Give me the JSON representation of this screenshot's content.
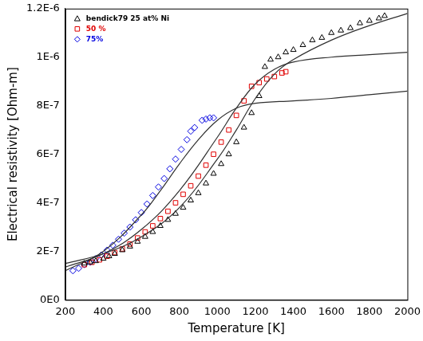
{
  "chart_data": {
    "type": "scatter",
    "x_label": "Temperature [K]",
    "y_label": "Electrical resistivity [Ohm-m]",
    "xlim": [
      200,
      2000
    ],
    "xticks": [
      200,
      400,
      600,
      800,
      1000,
      1200,
      1400,
      1600,
      1800,
      2000
    ],
    "ylim": [
      0,
      1.2e-06
    ],
    "yticks": [
      {
        "value": 0,
        "label": "0E0"
      },
      {
        "value": 2e-07,
        "label": "2E-7"
      },
      {
        "value": 4e-07,
        "label": "4E-7"
      },
      {
        "value": 6e-07,
        "label": "6E-7"
      },
      {
        "value": 8e-07,
        "label": "8E-7"
      },
      {
        "value": 1e-06,
        "label": "1E-6"
      },
      {
        "value": 1.2e-06,
        "label": "1.2E-6"
      }
    ],
    "grid": false,
    "legend": "upper left",
    "series": [
      {
        "name": "bendick79 25 at% Ni",
        "color": "#000000",
        "type": "scatter",
        "marker": "triangle",
        "x": [
          300,
          330,
          360,
          400,
          430,
          460,
          500,
          540,
          580,
          620,
          660,
          700,
          740,
          780,
          820,
          860,
          900,
          940,
          980,
          1020,
          1060,
          1100,
          1140,
          1180,
          1220,
          1250,
          1280,
          1320,
          1360,
          1400,
          1450,
          1500,
          1550,
          1600,
          1650,
          1700,
          1750,
          1800,
          1850,
          1880
        ],
        "values": [
          1.5e-07,
          1.55e-07,
          1.6e-07,
          1.7e-07,
          1.8e-07,
          1.9e-07,
          2.05e-07,
          2.2e-07,
          2.4e-07,
          2.6e-07,
          2.8e-07,
          3.05e-07,
          3.3e-07,
          3.55e-07,
          3.8e-07,
          4.1e-07,
          4.4e-07,
          4.8e-07,
          5.2e-07,
          5.6e-07,
          6e-07,
          6.5e-07,
          7.1e-07,
          7.7e-07,
          8.4e-07,
          9.6e-07,
          9.9e-07,
          1e-06,
          1.02e-06,
          1.03e-06,
          1.05e-06,
          1.07e-06,
          1.08e-06,
          1.1e-06,
          1.11e-06,
          1.12e-06,
          1.14e-06,
          1.15e-06,
          1.16e-06,
          1.17e-06
        ]
      },
      {
        "name": "50 %",
        "color": "#e00000",
        "type": "scatter",
        "marker": "square",
        "x": [
          300,
          340,
          380,
          420,
          460,
          500,
          540,
          580,
          620,
          660,
          700,
          740,
          780,
          820,
          860,
          900,
          940,
          980,
          1020,
          1060,
          1100,
          1140,
          1180,
          1220,
          1260,
          1300,
          1340,
          1360
        ],
        "values": [
          1.45e-07,
          1.55e-07,
          1.65e-07,
          1.8e-07,
          1.95e-07,
          2.1e-07,
          2.3e-07,
          2.55e-07,
          2.8e-07,
          3.05e-07,
          3.35e-07,
          3.65e-07,
          4e-07,
          4.35e-07,
          4.7e-07,
          5.1e-07,
          5.55e-07,
          6e-07,
          6.5e-07,
          7e-07,
          7.6e-07,
          8.2e-07,
          8.8e-07,
          8.95e-07,
          9.1e-07,
          9.2e-07,
          9.35e-07,
          9.4e-07
        ]
      },
      {
        "name": "75%",
        "color": "#0000e0",
        "type": "scatter",
        "marker": "diamond",
        "x": [
          240,
          270,
          300,
          330,
          360,
          390,
          420,
          450,
          480,
          510,
          540,
          570,
          600,
          630,
          660,
          690,
          720,
          750,
          780,
          810,
          840,
          860,
          880,
          920,
          940,
          960,
          980
        ],
        "values": [
          1.2e-07,
          1.3e-07,
          1.45e-07,
          1.55e-07,
          1.7e-07,
          1.85e-07,
          2.05e-07,
          2.25e-07,
          2.5e-07,
          2.75e-07,
          3e-07,
          3.3e-07,
          3.6e-07,
          3.95e-07,
          4.3e-07,
          4.65e-07,
          5e-07,
          5.4e-07,
          5.8e-07,
          6.2e-07,
          6.6e-07,
          6.95e-07,
          7.1e-07,
          7.4e-07,
          7.45e-07,
          7.5e-07,
          7.5e-07
        ]
      },
      {
        "color": "#303030",
        "type": "line",
        "line_style": "solid",
        "x": [
          200,
          400,
          600,
          800,
          1000,
          1100,
          1200,
          1300,
          1400,
          1600,
          1800,
          2000
        ],
        "values": [
          1.5e-07,
          1.9e-07,
          2.6e-07,
          3.8e-07,
          5.8e-07,
          7e-07,
          8.3e-07,
          9.3e-07,
          9.9e-07,
          1.07e-06,
          1.13e-06,
          1.18e-06
        ]
      },
      {
        "color": "#303030",
        "type": "line",
        "line_style": "solid",
        "x": [
          200,
          400,
          600,
          800,
          1000,
          1100,
          1200,
          1300,
          1400,
          1600,
          1800,
          2000
        ],
        "values": [
          1.35e-07,
          1.9e-07,
          2.9e-07,
          4.5e-07,
          6.7e-07,
          7.9e-07,
          8.9e-07,
          9.5e-07,
          9.8e-07,
          1e-06,
          1.01e-06,
          1.02e-06
        ]
      },
      {
        "color": "#303030",
        "type": "line",
        "line_style": "solid",
        "x": [
          200,
          400,
          600,
          700,
          800,
          900,
          1000,
          1100,
          1200,
          1400,
          1600,
          1800,
          2000
        ],
        "values": [
          1.2e-07,
          2e-07,
          3.5e-07,
          4.5e-07,
          5.6e-07,
          6.6e-07,
          7.4e-07,
          7.9e-07,
          8.1e-07,
          8.2e-07,
          8.3e-07,
          8.45e-07,
          8.6e-07
        ]
      }
    ]
  }
}
